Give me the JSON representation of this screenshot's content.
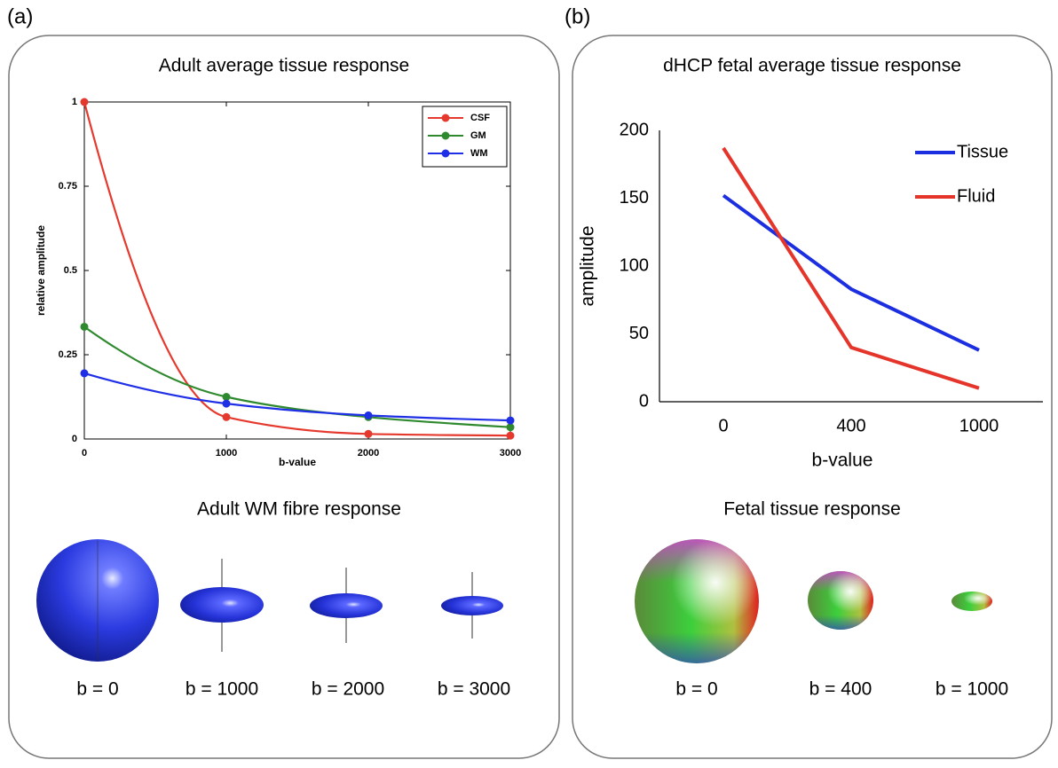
{
  "chart_data": [
    {
      "type": "line",
      "title": "Adult average tissue response",
      "x": [
        0,
        1000,
        2000,
        3000
      ],
      "series": [
        {
          "name": "CSF",
          "color": "#e5392e",
          "values": [
            1,
            0.065,
            0.015,
            0.01
          ]
        },
        {
          "name": "GM",
          "color": "#2f8a2f",
          "values": [
            0.333,
            0.125,
            0.065,
            0.035
          ]
        },
        {
          "name": "WM",
          "color": "#1f2fe6",
          "values": [
            0.195,
            0.105,
            0.07,
            0.055
          ]
        }
      ],
      "xlim": [
        0,
        3000
      ],
      "xticks": [
        0,
        1000,
        2000,
        3000
      ],
      "ylim": [
        0,
        1
      ],
      "yticks": [
        0,
        0.25,
        0.5,
        0.75,
        1
      ],
      "xlabel": "b-value",
      "ylabel": "relative amplitude",
      "markers": true,
      "smooth": true,
      "legend": "upper right"
    },
    {
      "type": "line",
      "title": "dHCP fetal average tissue response",
      "categories": [
        "0",
        "400",
        "1000"
      ],
      "series": [
        {
          "name": "Tissue",
          "color": "#1c2fe0",
          "values": [
            152,
            83,
            38
          ]
        },
        {
          "name": "Fluid",
          "color": "#e5352b",
          "values": [
            187,
            40,
            10
          ]
        }
      ],
      "ylim": [
        0,
        200
      ],
      "yticks": [
        0,
        50,
        100,
        150,
        200
      ],
      "xlabel": "b-value",
      "ylabel": "amplitude",
      "markers": false,
      "smooth": false,
      "legend": "upper right"
    }
  ],
  "panels": [
    {
      "label": "(a)",
      "glyph_title": "Adult WM fibre response",
      "glyph_labels": [
        "b = 0",
        "b = 1000",
        "b = 2000",
        "b = 3000"
      ]
    },
    {
      "label": "(b)",
      "glyph_title": "Fetal tissue response",
      "glyph_labels": [
        "b = 0",
        "b = 400",
        "b = 1000"
      ]
    }
  ]
}
